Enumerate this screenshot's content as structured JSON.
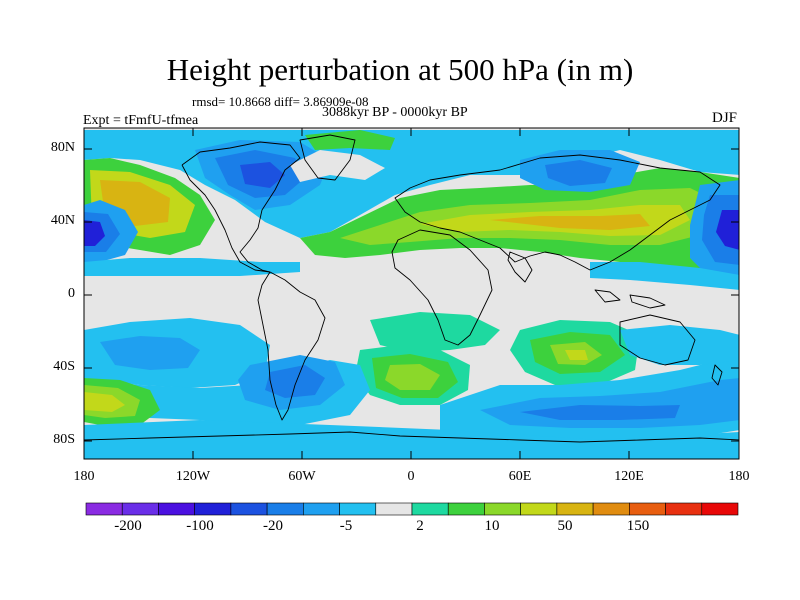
{
  "title": "Height perturbation at 500 hPa (in m)",
  "stats_line": "rmsd= 10.8668 diff= 3.86909e-08",
  "period_line": "3088kyr BP - 0000kyr BP",
  "experiment_label": "Expt = tFmfU-tfmea",
  "season_label": "DJF",
  "map": {
    "projection": "cylindrical equidistant",
    "lon_range": [
      -180,
      180
    ],
    "lat_range": [
      -90,
      90
    ],
    "y_axis_labels": [
      "80N",
      "40N",
      "0",
      "40S",
      "80S"
    ],
    "x_axis_labels": [
      "180",
      "120W",
      "60W",
      "0",
      "60E",
      "120E",
      "180"
    ],
    "background_color": "#e6e6e6",
    "coastline_color": "#000000"
  },
  "colorbar": {
    "labels": [
      "-200",
      "-100",
      "-20",
      "-5",
      "2",
      "10",
      "50",
      "150"
    ],
    "colors": [
      "#8a2be2",
      "#6a2ee8",
      "#4b10e0",
      "#2020d8",
      "#1c52e0",
      "#1a7ee8",
      "#1fa0f0",
      "#23c0f0",
      "#e6e6e6",
      "#1ed9a0",
      "#3dd13d",
      "#8bd82a",
      "#c2d81a",
      "#d8b412",
      "#e08c10",
      "#e85e10",
      "#e83010",
      "#e80808"
    ]
  }
}
